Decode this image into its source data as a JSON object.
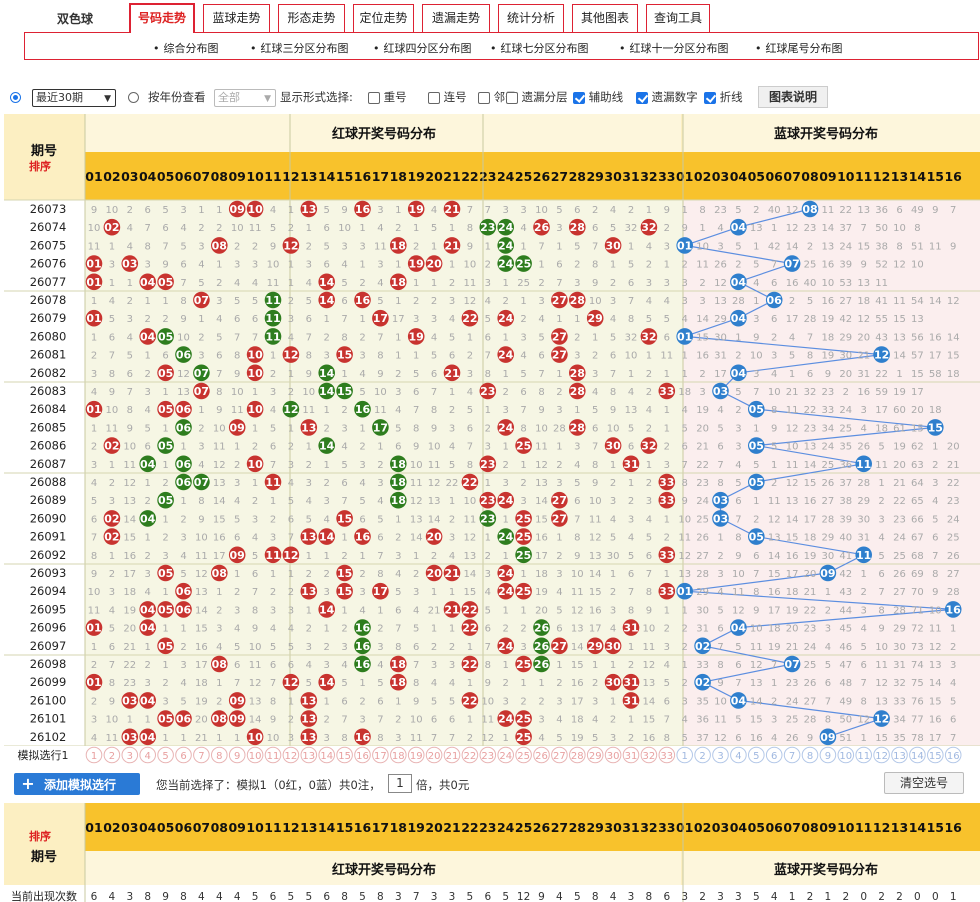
{
  "app": {
    "title": "双色球"
  },
  "nav": {
    "tabs": [
      {
        "label": "号码走势",
        "active": true
      },
      {
        "label": "蓝球走势"
      },
      {
        "label": "形态走势"
      },
      {
        "label": "定位走势"
      },
      {
        "label": "遗漏走势"
      },
      {
        "label": "统计分析"
      },
      {
        "label": "其他图表"
      },
      {
        "label": "查询工具"
      }
    ]
  },
  "subnav": [
    "综合分布图",
    "红球三分区分布图",
    "红球四分区分布图",
    "红球七分区分布图",
    "红球十一分区分布图",
    "红球尾号分布图"
  ],
  "controls": {
    "period_select": "最近30期",
    "by_year_label": "按年份查看",
    "year_select": "全部",
    "display_label": "显示形式选择:",
    "options": [
      {
        "label": "重号",
        "checked": false
      },
      {
        "label": "连号",
        "checked": false
      },
      {
        "label": "邻号",
        "checked": false
      },
      {
        "label": "遗漏分层",
        "checked": false
      },
      {
        "label": "辅助线",
        "checked": true
      },
      {
        "label": "遗漏数字",
        "checked": true
      },
      {
        "label": "折线",
        "checked": true
      }
    ],
    "legend_button": "图表说明"
  },
  "table": {
    "period_header": "期号",
    "sort_label": "排序",
    "red_header": "红球开奖号码分布",
    "blue_header": "蓝球开奖号码分布",
    "sim_row_label": "模拟选行1",
    "freq_label": "当前出现次数",
    "freq_values": [
      "6",
      "4",
      "3",
      "8",
      "9",
      "8",
      "4",
      "4",
      "4",
      "5",
      "6",
      "5",
      "5",
      "6",
      "8",
      "5",
      "8",
      "3",
      "7",
      "3",
      "3",
      "5",
      "6",
      "5",
      "12",
      "9",
      "4",
      "5",
      "8",
      "4",
      "3",
      "8",
      "6",
      "3",
      "2",
      "3",
      "3",
      "5",
      "4",
      "1",
      "2",
      "1",
      "2",
      "0",
      "2",
      "2",
      "0",
      "0",
      "1",
      "1"
    ],
    "red_color": "#c8332f",
    "green_color": "#2e7d1e",
    "blue_color": "#2f7fcd",
    "rows": [
      {
        "issue": "26073",
        "red": [
          9,
          10,
          13,
          16,
          19,
          21
        ],
        "green": [],
        "blue": 8,
        "m": "9 10 2 6 5 3 1 1 9 10 4 1 13 5 9 16 3 1 19 4 21 7 7 3 3 10 5 6 2 4 2 1 9 1 8 23 5 2 40 12 8 11 22 13 36 6 49 9 7"
      },
      {
        "issue": "26074",
        "red": [
          2,
          26,
          28,
          32
        ],
        "green": [
          23,
          24
        ],
        "blue": 4,
        "m": "10 2 4 7 6 4 2 2 10 11 5 2 1 6 10 1 4 2 1 5 1 8 23 24 4 26 3 28 6 5 32 3 2 9 1 4 41 13 1 12 23 14 37 7 50 10 8"
      },
      {
        "issue": "26075",
        "red": [
          8,
          12,
          18,
          21,
          30
        ],
        "green": [
          24
        ],
        "blue": 1,
        "m": "11 1 4 8 7 5 3 8 2 2 9 12 2 5 3 3 11 18 2 1 21 9 1 24 1 7 1 5 7 30 1 4 3 1 10 3 5 1 42 14 2 13 24 15 38 8 51 11 9"
      },
      {
        "issue": "26076",
        "red": [
          1,
          3,
          19,
          20
        ],
        "green": [
          24,
          25
        ],
        "blue": 7,
        "m": "1 3 3 3 9 6 4 1 3 3 10 1 3 6 4 1 3 1 19 20 1 10 2 24 25 1 6 2 8 1 5 2 1 2 11 26 2 5 7 15 25 16 39 9 52 12 10"
      },
      {
        "issue": "26077",
        "red": [
          1,
          4,
          5,
          14,
          18
        ],
        "green": [],
        "blue": 4,
        "m": "1 1 1 4 5 7 5 2 4 4 11 1 4 14 5 2 4 18 1 1 2 11 3 1 25 2 7 3 9 2 6 3 3 3 2 12 27 4 6 16 40 10 53 13 11"
      },
      {
        "issue": "26078",
        "red": [
          7,
          14,
          16,
          27,
          28
        ],
        "green": [
          11
        ],
        "blue": 6,
        "m": "1 4 2 1 1 8 7 3 5 5 11 2 5 14 6 16 5 1 2 2 3 12 4 2 1 3 27 28 10 3 7 4 4 3 3 13 28 1 6 2 5 16 27 18 41 11 54 14 12"
      },
      {
        "issue": "26079",
        "red": [
          1,
          17,
          22,
          24,
          29
        ],
        "green": [
          11
        ],
        "blue": 4,
        "m": "1 5 3 2 2 9 1 4 6 6 11 3 6 1 7 1 6 17 3 3 4 22 5 24 2 4 1 1 29 4 8 5 5 4 14 29 4 3 6 17 28 19 42 12 55 15 13"
      },
      {
        "issue": "26080",
        "red": [
          4,
          19,
          27,
          32
        ],
        "green": [
          5,
          11
        ],
        "blue": 1,
        "m": "1 6 4 4 5 10 2 5 7 7 11 4 7 2 8 2 7 1 19 4 5 1 6 1 3 5 27 2 1 5 32 6 6 1 15 30 1 9 2 4 7 18 29 20 43 13 56 16 14"
      },
      {
        "issue": "26081",
        "red": [
          10,
          12,
          15,
          24,
          27
        ],
        "green": [
          6
        ],
        "blue": 12,
        "m": "2 7 5 1 6 11 3 6 8 10 1 12 8 3 15 3 8 1 1 5 6 2 7 24 4 6 27 3 2 6 10 1 11 1 16 31 2 10 3 5 8 19 30 21 12 14 57 17 15"
      },
      {
        "issue": "26082",
        "red": [
          5,
          10,
          21,
          28
        ],
        "green": [
          7,
          14
        ],
        "blue": 4,
        "m": "3 8 6 2 5 12 7 7 9 10 2 1 9 14 1 4 9 2 5 6 21 3 8 1 5 7 1 28 3 7 1 2 1 1 2 17 32 3 4 1 6 9 20 31 22 1 15 58 18 16"
      },
      {
        "issue": "26083",
        "red": [
          7,
          23,
          28,
          33
        ],
        "green": [
          14,
          15
        ],
        "blue": 3,
        "m": "4 9 7 3 1 13 7 8 10 1 3 2 10 14 15 5 10 3 6 7 1 4 23 2 6 8 2 28 4 8 4 2 33 18 3 1 5 7 10 21 32 23 2 16 59 19 17"
      },
      {
        "issue": "26084",
        "red": [
          1,
          5,
          6,
          10
        ],
        "green": [
          12,
          16
        ],
        "blue": 5,
        "m": "1 10 8 4 5 6 1 9 11 10 4 12 11 1 2 16 11 4 7 8 2 5 1 3 7 9 3 1 5 9 13 4 1 4 19 4 2 5 8 11 22 33 24 3 17 60 20 18"
      },
      {
        "issue": "26085",
        "red": [
          9,
          13,
          24,
          28
        ],
        "green": [
          6,
          17
        ],
        "blue": 15,
        "m": "1 11 9 5 1 6 2 10 9 1 5 1 13 2 3 1 17 5 8 9 3 6 2 24 8 10 28 2 6 10 5 2 1 5 20 5 3 1 9 12 23 34 25 4 18 61 15 19"
      },
      {
        "issue": "26086",
        "red": [
          2,
          25,
          30,
          32
        ],
        "green": [
          5,
          14
        ],
        "blue": 5,
        "m": "2 2 10 6 5 1 3 11 1 2 6 2 1 14 4 2 1 6 9 10 4 7 3 1 25 11 1 3 7 30 6 32 2 6 21 6 3 4 5 10 13 24 35 26 5 19 62 1 20"
      },
      {
        "issue": "26087",
        "red": [
          10,
          23,
          31
        ],
        "green": [
          4,
          6,
          18
        ],
        "blue": 11,
        "m": "3 1 11 4 1 6 4 12 2 10 7 3 2 1 5 3 2 18 10 11 5 8 23 2 1 12 2 4 8 1 31 1 3 7 22 7 4 5 1 11 14 25 36 27 11 20 63 2 21"
      },
      {
        "issue": "26088",
        "red": [
          11,
          22,
          33
        ],
        "green": [
          6,
          7,
          18
        ],
        "blue": 5,
        "m": "4 2 12 1 2 6 7 13 3 1 11 4 3 2 6 4 3 18 11 12 22 9 1 3 2 13 3 5 9 2 1 2 33 8 23 8 5 5 2 12 15 26 37 28 1 21 64 3 22"
      },
      {
        "issue": "26089",
        "red": [
          23,
          24,
          27,
          33
        ],
        "green": [
          5,
          18
        ],
        "blue": 3,
        "m": "5 3 13 2 5 1 8 14 4 2 1 5 4 3 7 5 4 18 12 13 1 10 23 24 3 14 27 6 10 3 2 3 33 9 24 3 6 1 11 13 16 27 38 29 2 22 65 4 23"
      },
      {
        "issue": "26090",
        "red": [
          2,
          15,
          25,
          27
        ],
        "green": [
          4,
          23
        ],
        "blue": 3,
        "m": "6 2 14 4 1 2 9 15 5 3 2 6 5 4 15 6 5 1 13 14 2 11 23 1 25 15 27 7 11 4 3 4 1 10 25 3 7 2 12 14 17 28 39 30 3 23 66 5 24"
      },
      {
        "issue": "26091",
        "red": [
          2,
          13,
          14,
          16,
          20,
          25
        ],
        "green": [
          24
        ],
        "blue": 5,
        "m": "7 2 15 1 2 3 10 16 6 4 3 7 13 14 1 16 6 2 14 20 3 12 1 24 25 16 1 8 12 5 4 5 2 11 26 1 8 5 13 15 18 29 40 31 4 24 67 6 25"
      },
      {
        "issue": "26092",
        "red": [
          9,
          11,
          12,
          33
        ],
        "green": [
          25
        ],
        "blue": 11,
        "m": "8 1 16 2 3 4 11 17 9 5 11 12 1 1 2 1 7 3 1 2 4 13 2 1 25 17 2 9 13 30 5 6 33 12 27 2 9 6 14 16 19 30 41 11 5 25 68 7 26"
      },
      {
        "issue": "26093",
        "red": [
          5,
          8,
          15,
          20,
          21,
          24
        ],
        "green": [],
        "blue": 9,
        "m": "9 2 17 3 5 5 12 8 1 6 1 1 2 2 15 2 8 4 2 20 21 14 3 24 1 18 3 10 14 1 6 7 1 13 28 3 10 7 15 17 20 9 42 1 6 26 69 8 27"
      },
      {
        "issue": "26094",
        "red": [
          6,
          13,
          15,
          17,
          24,
          25,
          33
        ],
        "green": [],
        "blue": 1,
        "m": "10 3 18 4 1 6 13 1 2 7 2 2 13 3 15 3 17 5 3 1 1 15 4 24 25 19 4 11 15 2 7 8 33 1 29 4 11 8 16 18 21 1 43 2 7 27 70 9 28"
      },
      {
        "issue": "26095",
        "red": [
          4,
          5,
          6,
          14,
          21,
          22
        ],
        "green": [],
        "blue": 16,
        "m": "11 4 19 4 5 6 14 2 3 8 3 3 1 14 1 4 1 6 4 21 22 16 5 1 1 20 5 12 16 3 8 9 1 1 30 5 12 9 17 19 22 2 44 3 8 28 71 10 16"
      },
      {
        "issue": "26096",
        "red": [
          1,
          4,
          22,
          31
        ],
        "green": [
          16,
          26
        ],
        "blue": 4,
        "m": "1 5 20 4 1 1 15 3 4 9 4 4 2 1 2 16 2 7 5 1 1 22 6 2 2 26 6 13 17 4 31 10 2 2 31 6 4 10 18 20 23 3 45 4 9 29 72 11 1"
      },
      {
        "issue": "26097",
        "red": [
          5,
          24,
          27,
          29,
          30
        ],
        "green": [
          16,
          26
        ],
        "blue": 2,
        "m": "1 6 21 1 5 2 16 4 5 10 5 5 3 2 3 16 3 8 6 2 2 1 7 24 3 26 27 14 29 30 1 11 3 2 32 7 5 11 19 21 24 4 46 5 10 30 73 12 2"
      },
      {
        "issue": "26098",
        "red": [
          8,
          18,
          22,
          25
        ],
        "green": [
          16,
          26
        ],
        "blue": 7,
        "m": "2 7 22 2 1 3 17 8 6 11 6 6 4 3 4 16 4 18 7 3 3 22 8 1 25 26 1 15 1 1 2 12 4 1 33 8 6 12 7 22 25 5 47 6 11 31 74 13 3"
      },
      {
        "issue": "26099",
        "red": [
          1,
          12,
          14,
          18,
          30,
          31
        ],
        "green": [],
        "blue": 2,
        "m": "1 8 23 3 2 4 18 1 7 12 7 12 5 14 5 1 5 18 8 4 4 1 9 2 1 1 2 16 2 30 31 13 5 2 34 9 7 13 1 23 26 6 48 7 12 32 75 14 4"
      },
      {
        "issue": "26100",
        "red": [
          3,
          4,
          9,
          13,
          22,
          31
        ],
        "green": [],
        "blue": 4,
        "m": "2 9 3 4 3 5 19 2 9 13 8 1 13 1 6 2 6 1 9 5 5 22 10 3 2 2 3 17 3 1 31 14 6 3 35 10 4 14 2 24 27 7 49 8 13 33 76 15 5"
      },
      {
        "issue": "26101",
        "red": [
          5,
          6,
          8,
          9,
          13,
          24,
          25
        ],
        "green": [],
        "blue": 12,
        "m": "3 10 1 1 5 6 20 8 9 14 9 2 13 2 7 3 7 2 10 6 6 1 11 24 25 3 4 18 4 2 1 15 7 4 36 11 5 15 3 25 28 8 50 12 14 34 77 16 6"
      },
      {
        "issue": "26102",
        "red": [
          3,
          4,
          10,
          13,
          16,
          25
        ],
        "green": [],
        "blue": 9,
        "m": "4 11 3 4 1 1 21 1 1 10 10 3 13 3 8 16 8 3 11 7 7 2 12 1 25 4 5 19 5 3 2 16 8 5 37 12 6 16 4 26 9 9 51 1 15 35 78 17 7"
      }
    ]
  },
  "bottom": {
    "add_button": "添加模拟选行",
    "status_prefix": "您当前选择了：模拟1（0红，0蓝）共0注，",
    "multiplier_value": "1",
    "status_suffix": "倍，共0元",
    "clear_button": "清空选号"
  }
}
